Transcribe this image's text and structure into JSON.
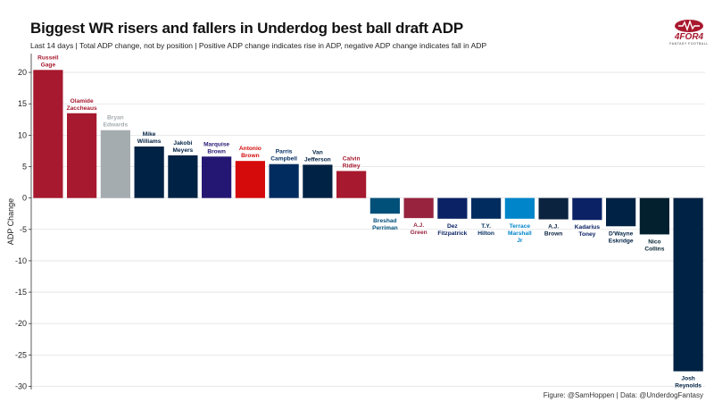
{
  "title": "Biggest WR risers and fallers in Underdog best ball draft ADP",
  "subtitle": "Last 14 days | Total ADP change, not by position | Positive ADP change indicates rise in ADP, negative ADP change indicates fall in ADP",
  "caption": "Figure: @SamHoppen | Data: @UnderdogFantasy",
  "logo": {
    "text": "4FOR4",
    "subtext": "FANTASY FOOTBALL",
    "color": "#a8182e"
  },
  "chart_data": {
    "type": "bar",
    "title": "Biggest WR risers and fallers in Underdog best ball draft ADP",
    "xlabel": "",
    "ylabel": "ADP Change",
    "ylim": [
      -30.5,
      23
    ],
    "yticks": [
      20,
      15,
      10,
      5,
      0,
      -5,
      -10,
      -15,
      -20,
      -25,
      -30
    ],
    "grid": true,
    "legend": "none",
    "categories": [
      "Russell Gage",
      "Olamide Zaccheaus",
      "Bryan Edwards",
      "Mike Williams",
      "Jakobi Meyers",
      "Marquise Brown",
      "Antonio Brown",
      "Parris Campbell",
      "Van Jefferson",
      "Calvin Ridley",
      "Breshad Perriman",
      "A.J. Green",
      "Dez Fitzpatrick",
      "T.Y. Hilton",
      "Terrace Marshall Jr",
      "A.J. Brown",
      "Kadarius Toney",
      "D'Wayne Eskridge",
      "Nico Collins",
      "Josh Reynolds"
    ],
    "labels": [
      [
        "Russell",
        "Gage"
      ],
      [
        "Olamide",
        "Zaccheaus"
      ],
      [
        "Bryan",
        "Edwards"
      ],
      [
        "Mike",
        "Williams"
      ],
      [
        "Jakobi",
        "Meyers"
      ],
      [
        "Marquise",
        "Brown"
      ],
      [
        "Antonio",
        "Brown"
      ],
      [
        "Parris",
        "Campbell"
      ],
      [
        "Van",
        "Jefferson"
      ],
      [
        "Calvin",
        "Ridley"
      ],
      [
        "Breshad",
        "Perriman"
      ],
      [
        "A.J.",
        "Green"
      ],
      [
        "Dez",
        "Fitzpatrick"
      ],
      [
        "T.Y.",
        "Hilton"
      ],
      [
        "Terrace",
        "Marshall",
        "Jr"
      ],
      [
        "A.J.",
        "Brown"
      ],
      [
        "Kadarius",
        "Toney"
      ],
      [
        "D'Wayne",
        "Eskridge"
      ],
      [
        "Nico",
        "Collins"
      ],
      [
        "Josh",
        "Reynolds"
      ]
    ],
    "values": [
      20.4,
      13.5,
      10.8,
      8.2,
      6.8,
      6.6,
      5.9,
      5.4,
      5.3,
      4.3,
      -2.5,
      -3.2,
      -3.3,
      -3.3,
      -3.3,
      -3.4,
      -3.5,
      -4.5,
      -5.8,
      -27.6
    ],
    "colors": [
      "#a6192e",
      "#a6192e",
      "#a5acaf",
      "#002244",
      "#002244",
      "#241773",
      "#d50a0a",
      "#002c5f",
      "#002244",
      "#a6192e",
      "#00507a",
      "#97233f",
      "#0b2265",
      "#002c5f",
      "#0085ca",
      "#0c2340",
      "#0b2265",
      "#002244",
      "#03202f",
      "#002244"
    ]
  }
}
